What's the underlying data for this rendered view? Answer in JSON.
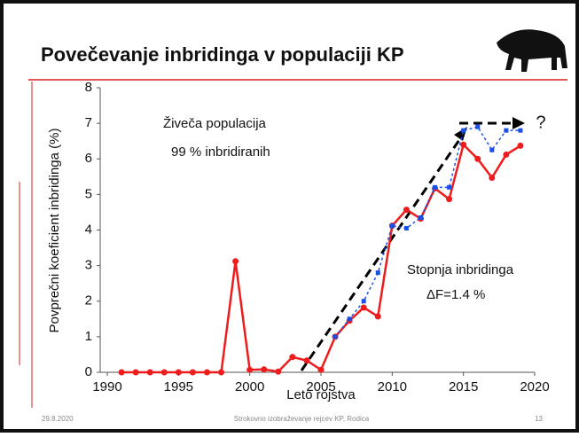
{
  "slide": {
    "title": "Povečevanje inbridinga v populaciji KP",
    "footer_date": "29.8.2020",
    "footer_text": "Strokovno izobraževanje rejcev KP, Rodica",
    "page_number": "13"
  },
  "chart_data": {
    "type": "line",
    "x_label": "Leto rojstva",
    "y_label": "Povprečni koeficient inbridinga (%)",
    "annotations": [
      "Živeča populacija",
      "99 % inbridiranih",
      "Stopnja inbridinga",
      "ΔF=1.4 %",
      "?"
    ],
    "x": [
      1991,
      1992,
      1993,
      1994,
      1995,
      1996,
      1997,
      1998,
      1999,
      2000,
      2001,
      2002,
      2003,
      2004,
      2005,
      2006,
      2007,
      2008,
      2009,
      2010,
      2011,
      2012,
      2013,
      2014,
      2015,
      2016,
      2017,
      2018,
      2019
    ],
    "series": [
      {
        "color": "#ee1c1c",
        "marker": "circle",
        "dash": false,
        "values": [
          0,
          0,
          0,
          0,
          0,
          0,
          0,
          0,
          3.12,
          0.07,
          0.08,
          0.02,
          0.43,
          0.33,
          0.07,
          1.0,
          1.45,
          1.82,
          1.57,
          4.12,
          4.57,
          4.32,
          5.17,
          4.87,
          6.4,
          6.0,
          5.47,
          6.12,
          6.37
        ]
      },
      {
        "color": "#1a4fe6",
        "marker": "square",
        "dash": true,
        "values": [
          null,
          null,
          null,
          null,
          null,
          null,
          null,
          null,
          null,
          null,
          null,
          null,
          null,
          null,
          null,
          1.0,
          1.5,
          2.0,
          2.8,
          4.12,
          4.05,
          4.35,
          5.2,
          5.2,
          6.8,
          6.9,
          6.25,
          6.8,
          6.8
        ]
      }
    ],
    "xlim": [
      1990,
      2020
    ],
    "xticks": [
      1990,
      1995,
      2000,
      2005,
      2010,
      2015,
      2020
    ],
    "ylim": [
      0,
      8
    ],
    "yticks": [
      0,
      1,
      2,
      3,
      4,
      5,
      6,
      7,
      8
    ]
  }
}
